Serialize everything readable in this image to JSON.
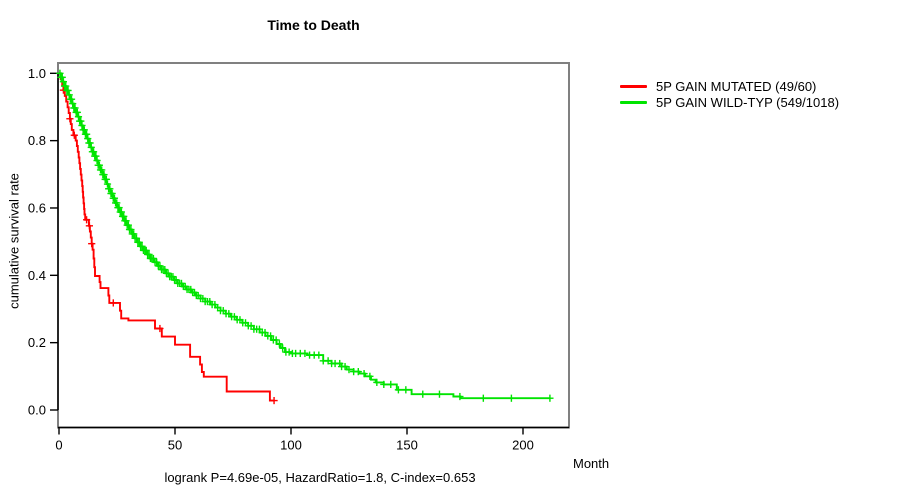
{
  "chart_data": {
    "type": "line",
    "subtype": "kaplan-meier-step",
    "title": "Time to Death",
    "xlabel": "Month",
    "ylabel": "cumulative survival rate",
    "subtitle": "logrank P=4.69e-05, HazardRatio=1.8, C-index=0.653",
    "xlim": [
      0,
      220
    ],
    "ylim": [
      0.0,
      1.0
    ],
    "x_ticks": [
      0,
      50,
      100,
      150,
      200
    ],
    "y_tick_labels": [
      "0.0",
      "0.2",
      "0.4",
      "0.6",
      "0.8",
      "1.0"
    ],
    "y_tick_values": [
      0.0,
      0.2,
      0.4,
      0.6,
      0.8,
      1.0
    ],
    "grid": false,
    "legend_position": "top-right-outside",
    "axis_box_color": "#808080",
    "axis_line_color": "#000000",
    "series": [
      {
        "name": "5P GAIN MUTATED (49/60)",
        "color": "#ff0000",
        "points": [
          [
            0,
            1.0
          ],
          [
            0.7,
            0.983
          ],
          [
            1.4,
            0.966
          ],
          [
            1.9,
            0.95
          ],
          [
            2.5,
            0.933
          ],
          [
            3.1,
            0.916
          ],
          [
            3.7,
            0.899
          ],
          [
            4.2,
            0.882
          ],
          [
            4.7,
            0.865
          ],
          [
            5.1,
            0.849
          ],
          [
            5.5,
            0.832
          ],
          [
            6.2,
            0.816
          ],
          [
            7.2,
            0.8
          ],
          [
            7.7,
            0.784
          ],
          [
            8.1,
            0.767
          ],
          [
            8.5,
            0.75
          ],
          [
            8.8,
            0.733
          ],
          [
            9.1,
            0.716
          ],
          [
            9.4,
            0.699
          ],
          [
            9.7,
            0.682
          ],
          [
            10.0,
            0.665
          ],
          [
            10.2,
            0.648
          ],
          [
            10.4,
            0.631
          ],
          [
            10.6,
            0.614
          ],
          [
            10.8,
            0.597
          ],
          [
            11.0,
            0.581
          ],
          [
            11.3,
            0.565
          ],
          [
            12.9,
            0.547
          ],
          [
            13.3,
            0.53
          ],
          [
            13.7,
            0.512
          ],
          [
            14.1,
            0.494
          ],
          [
            14.5,
            0.476
          ],
          [
            14.9,
            0.45
          ],
          [
            15.2,
            0.424
          ],
          [
            15.5,
            0.398
          ],
          [
            17.5,
            0.38
          ],
          [
            17.9,
            0.362
          ],
          [
            21.3,
            0.34
          ],
          [
            21.7,
            0.318
          ],
          [
            26.3,
            0.295
          ],
          [
            26.8,
            0.272
          ],
          [
            29.9,
            0.266
          ],
          [
            41.4,
            0.242
          ],
          [
            44.3,
            0.218
          ],
          [
            50.0,
            0.194
          ],
          [
            56.5,
            0.158
          ],
          [
            60.8,
            0.135
          ],
          [
            61.6,
            0.113
          ],
          [
            62.4,
            0.099
          ],
          [
            72.3,
            0.055
          ],
          [
            90.9,
            0.028
          ],
          [
            92.7,
            0.028
          ]
        ],
        "censor_times": [
          1.9,
          4.7,
          6.6,
          11.9,
          13.1,
          14.1,
          23.4,
          43.5,
          92.7
        ]
      },
      {
        "name": "5P GAIN WILD-TYP (549/1018)",
        "color": "#00e400",
        "points": [
          [
            0,
            1.0
          ],
          [
            0.8,
            0.988
          ],
          [
            1.6,
            0.975
          ],
          [
            2.4,
            0.962
          ],
          [
            3.2,
            0.949
          ],
          [
            4.0,
            0.936
          ],
          [
            4.8,
            0.923
          ],
          [
            5.6,
            0.91
          ],
          [
            6.4,
            0.897
          ],
          [
            7.2,
            0.884
          ],
          [
            8.0,
            0.871
          ],
          [
            8.8,
            0.858
          ],
          [
            9.6,
            0.845
          ],
          [
            10.4,
            0.832
          ],
          [
            11.2,
            0.819
          ],
          [
            12.0,
            0.806
          ],
          [
            12.8,
            0.793
          ],
          [
            13.6,
            0.78
          ],
          [
            14.4,
            0.767
          ],
          [
            15.2,
            0.754
          ],
          [
            16.0,
            0.741
          ],
          [
            16.9,
            0.727
          ],
          [
            17.8,
            0.713
          ],
          [
            18.7,
            0.699
          ],
          [
            19.6,
            0.685
          ],
          [
            20.5,
            0.671
          ],
          [
            21.4,
            0.657
          ],
          [
            22.3,
            0.643
          ],
          [
            23.2,
            0.629
          ],
          [
            24.1,
            0.615
          ],
          [
            25.0,
            0.601
          ],
          [
            26.0,
            0.588
          ],
          [
            27.0,
            0.575
          ],
          [
            28.0,
            0.562
          ],
          [
            29.0,
            0.549
          ],
          [
            30.2,
            0.536
          ],
          [
            31.4,
            0.523
          ],
          [
            32.6,
            0.51
          ],
          [
            33.8,
            0.498
          ],
          [
            35.0,
            0.486
          ],
          [
            36.4,
            0.474
          ],
          [
            37.8,
            0.462
          ],
          [
            39.2,
            0.45
          ],
          [
            40.8,
            0.439
          ],
          [
            42.4,
            0.428
          ],
          [
            44.0,
            0.417
          ],
          [
            45.8,
            0.406
          ],
          [
            47.6,
            0.396
          ],
          [
            49.4,
            0.386
          ],
          [
            51.2,
            0.376
          ],
          [
            53.0,
            0.367
          ],
          [
            55.0,
            0.358
          ],
          [
            57.0,
            0.349
          ],
          [
            59.0,
            0.34
          ],
          [
            61.0,
            0.331
          ],
          [
            63.0,
            0.322
          ],
          [
            65.2,
            0.313
          ],
          [
            67.4,
            0.304
          ],
          [
            69.6,
            0.295
          ],
          [
            71.8,
            0.286
          ],
          [
            74.0,
            0.277
          ],
          [
            76.5,
            0.268
          ],
          [
            79.0,
            0.259
          ],
          [
            81.5,
            0.25
          ],
          [
            84.0,
            0.24
          ],
          [
            86.5,
            0.23
          ],
          [
            89.0,
            0.22
          ],
          [
            91.5,
            0.208
          ],
          [
            93.8,
            0.196
          ],
          [
            95.6,
            0.184
          ],
          [
            97.4,
            0.172
          ],
          [
            100.0,
            0.168
          ],
          [
            107.0,
            0.163
          ],
          [
            113.9,
            0.146
          ],
          [
            117.5,
            0.138
          ],
          [
            121.8,
            0.129
          ],
          [
            124.0,
            0.12
          ],
          [
            127.0,
            0.114
          ],
          [
            129.5,
            0.108
          ],
          [
            132.0,
            0.1
          ],
          [
            134.5,
            0.09
          ],
          [
            136.5,
            0.082
          ],
          [
            140.0,
            0.076
          ],
          [
            145.6,
            0.06
          ],
          [
            152.0,
            0.047
          ],
          [
            170.0,
            0.04
          ],
          [
            173.0,
            0.035
          ],
          [
            211.6,
            0.035
          ]
        ],
        "censor_times": [
          0.4,
          0.9,
          1.4,
          1.9,
          2.4,
          2.9,
          3.4,
          3.9,
          4.4,
          4.9,
          5.4,
          5.9,
          6.4,
          6.9,
          7.4,
          7.9,
          8.4,
          8.9,
          9.4,
          9.9,
          10.4,
          10.9,
          11.4,
          11.9,
          12.4,
          12.9,
          13.4,
          13.9,
          14.4,
          14.9,
          15.4,
          15.9,
          16.4,
          16.9,
          17.4,
          17.9,
          18.4,
          18.9,
          19.4,
          19.9,
          20.4,
          20.9,
          21.4,
          21.9,
          22.4,
          22.9,
          23.4,
          23.9,
          24.4,
          24.9,
          25.4,
          25.9,
          26.4,
          26.9,
          27.4,
          27.9,
          28.4,
          28.9,
          29.4,
          29.9,
          30.4,
          31,
          31.6,
          32.2,
          32.8,
          33.4,
          34,
          34.6,
          35.2,
          35.8,
          36.4,
          37,
          37.6,
          38.2,
          38.8,
          39.4,
          40,
          40.7,
          41.4,
          42.1,
          42.8,
          43.5,
          44.2,
          44.9,
          45.6,
          46.3,
          47,
          47.7,
          48.4,
          49.1,
          49.8,
          50.5,
          51.2,
          52,
          52.8,
          53.6,
          54.4,
          55.2,
          56,
          56.8,
          57.6,
          58.4,
          59.2,
          60,
          61,
          62,
          63,
          64,
          65,
          66,
          67.2,
          68.4,
          69.6,
          70.8,
          72,
          73.2,
          74.4,
          75.6,
          76.8,
          78,
          79.2,
          80.4,
          81.6,
          82.8,
          84,
          85.2,
          86.4,
          87.6,
          88.8,
          90,
          91.2,
          92.4,
          93.6,
          95,
          96.4,
          97.8,
          99.2,
          100.6,
          102,
          104,
          106,
          108,
          110,
          112,
          113.9,
          116,
          117.5,
          119,
          121,
          121.8,
          123.3,
          125,
          127,
          129,
          131.5,
          134,
          137,
          140,
          143,
          146.3,
          149.5,
          156.8,
          164,
          172.8,
          182.9,
          195,
          211.6
        ]
      }
    ]
  }
}
